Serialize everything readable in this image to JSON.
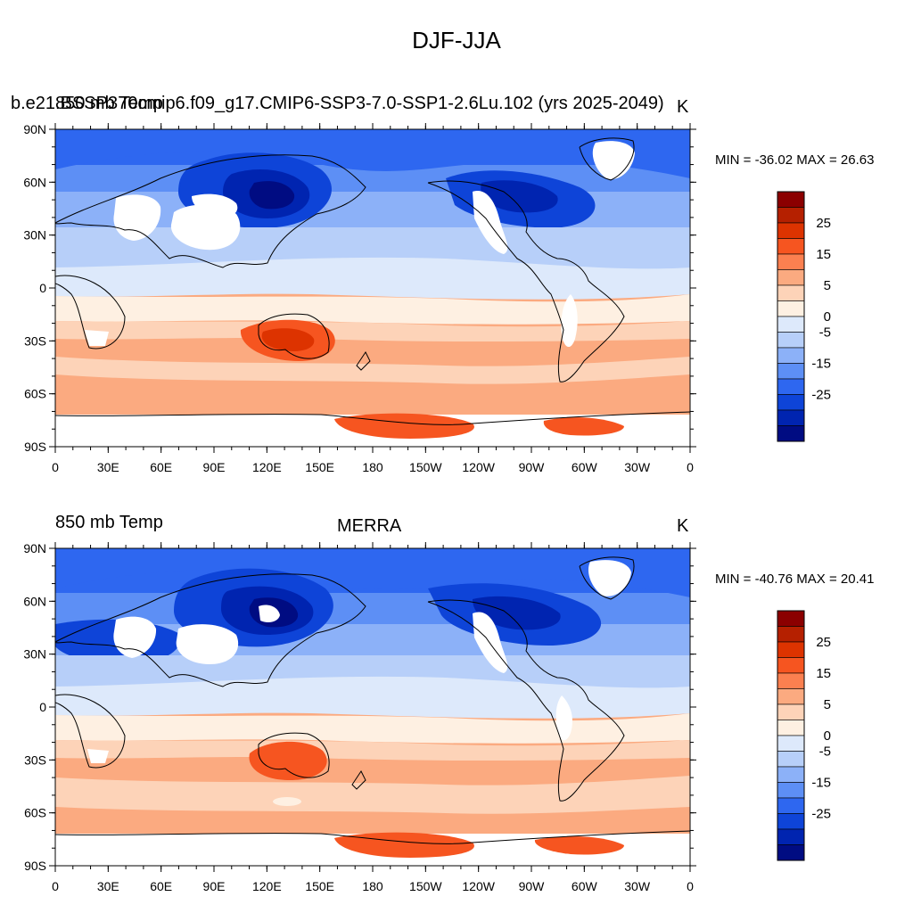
{
  "figure": {
    "title": "DJF-JJA"
  },
  "panels": [
    {
      "left_title_a": "850 mb Temp",
      "left_title_b": "b.e21.BSSP370cmip6.f09_g17.CMIP6-SSP3-7.0-SSP1-2.6Lu.102 (yrs 2025-2049)",
      "center_title": "",
      "units": "K",
      "minmax_label": "MIN = -36.02 MAX =  26.63",
      "min": -36.02,
      "max": 26.63
    },
    {
      "left_title_a": "850 mb Temp",
      "left_title_b": "",
      "center_title": "MERRA",
      "units": "K",
      "minmax_label": "MIN = -40.76 MAX =  20.41",
      "min": -40.76,
      "max": 20.41
    }
  ],
  "axes": {
    "lon_labels": [
      "0",
      "30E",
      "60E",
      "90E",
      "120E",
      "150E",
      "180",
      "150W",
      "120W",
      "90W",
      "60W",
      "30W",
      "0"
    ],
    "lat_labels": [
      "90N",
      "60N",
      "30N",
      "0",
      "30S",
      "60S",
      "90S"
    ]
  },
  "colorbar": {
    "labels": [
      "25",
      "15",
      "5",
      "0",
      "-5",
      "-15",
      "-25"
    ],
    "colors": [
      "#8b0000",
      "#b52000",
      "#dd3300",
      "#f65520",
      "#fb8050",
      "#fbaa80",
      "#fdd3b8",
      "#fef0e2",
      "#dde9fb",
      "#b7cff9",
      "#8cb1f8",
      "#5d8ff5",
      "#2e67f0",
      "#0e44d8",
      "#0024b0",
      "#000c82"
    ]
  },
  "chart_data": [
    {
      "type": "heatmap",
      "title": "850 mb Temp",
      "subtitle": "b.e21.BSSP370cmip6.f09_g17.CMIP6-SSP3-7.0-SSP1-2.6Lu.102 (yrs 2025-2049)",
      "units": "K",
      "season": "DJF-JJA",
      "min": -36.02,
      "max": 26.63,
      "xlim": [
        0,
        360
      ],
      "ylim": [
        -90,
        90
      ],
      "contour_levels": [
        -35,
        -30,
        -25,
        -20,
        -15,
        -10,
        -5,
        -2.5,
        0,
        2.5,
        5,
        10,
        15,
        20,
        25,
        30,
        35
      ],
      "approx_zonal_mean": [
        {
          "lat": 75,
          "value": -20
        },
        {
          "lat": 60,
          "value": -22
        },
        {
          "lat": 45,
          "value": -14
        },
        {
          "lat": 30,
          "value": -7
        },
        {
          "lat": 15,
          "value": -2
        },
        {
          "lat": 0,
          "value": 1
        },
        {
          "lat": -15,
          "value": 4
        },
        {
          "lat": -30,
          "value": 7
        },
        {
          "lat": -45,
          "value": 6
        },
        {
          "lat": -60,
          "value": 4
        },
        {
          "lat": -75,
          "value": 13
        }
      ]
    },
    {
      "type": "heatmap",
      "title": "850 mb Temp",
      "subtitle": "MERRA",
      "units": "K",
      "season": "DJF-JJA",
      "min": -40.76,
      "max": 20.41,
      "xlim": [
        0,
        360
      ],
      "ylim": [
        -90,
        90
      ],
      "contour_levels": [
        -35,
        -30,
        -25,
        -20,
        -15,
        -10,
        -5,
        -2.5,
        0,
        2.5,
        5,
        10,
        15,
        20,
        25,
        30,
        35
      ],
      "approx_zonal_mean": [
        {
          "lat": 75,
          "value": -21
        },
        {
          "lat": 60,
          "value": -24
        },
        {
          "lat": 45,
          "value": -16
        },
        {
          "lat": 30,
          "value": -8
        },
        {
          "lat": 15,
          "value": -2
        },
        {
          "lat": 0,
          "value": 0
        },
        {
          "lat": -15,
          "value": 3
        },
        {
          "lat": -30,
          "value": 6
        },
        {
          "lat": -45,
          "value": 5
        },
        {
          "lat": -60,
          "value": 4
        },
        {
          "lat": -75,
          "value": 11
        }
      ]
    }
  ]
}
